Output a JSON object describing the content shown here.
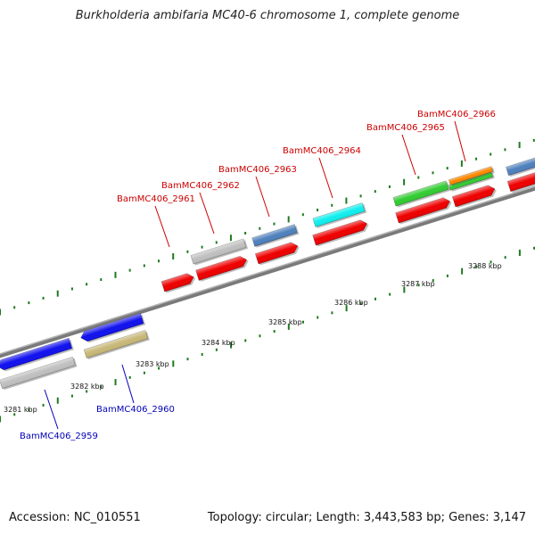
{
  "header": {
    "title": "Burkholderia ambifaria MC40-6 chromosome 1, complete genome"
  },
  "footer": {
    "accession": "Accession: NC_010551",
    "summary": "Topology: circular; Length: 3,443,583 bp; Genes: 3,147"
  },
  "colors": {
    "backbone": "#8c8c8c",
    "tick_major": "#1f7a1f",
    "forward_label": "#cc0000",
    "reverse_label": "#0000bb",
    "cds": "#ee0000",
    "gene_blue": "#1111ee",
    "gene_grey": "#c0c0c0",
    "gene_steelblue": "#4f81bd",
    "gene_cyan": "#11eeee",
    "gene_green": "#33cc33",
    "gene_orange": "#ff8800",
    "gene_olive": "#c8b878"
  },
  "scale_labels": [
    "3281 kbp",
    "3282 kbp",
    "3283 kbp",
    "3284 kbp",
    "3285 kbp",
    "3286 kbp",
    "3287 kbp",
    "3288 kbp"
  ],
  "gene_labels": [
    {
      "id": "BamMC406_2959",
      "strand": "reverse"
    },
    {
      "id": "BamMC406_2960",
      "strand": "reverse"
    },
    {
      "id": "BamMC406_2961",
      "strand": "forward"
    },
    {
      "id": "BamMC406_2962",
      "strand": "forward"
    },
    {
      "id": "BamMC406_2963",
      "strand": "forward"
    },
    {
      "id": "BamMC406_2964",
      "strand": "forward"
    },
    {
      "id": "BamMC406_2965",
      "strand": "forward"
    },
    {
      "id": "BamMC406_2966",
      "strand": "forward"
    }
  ]
}
